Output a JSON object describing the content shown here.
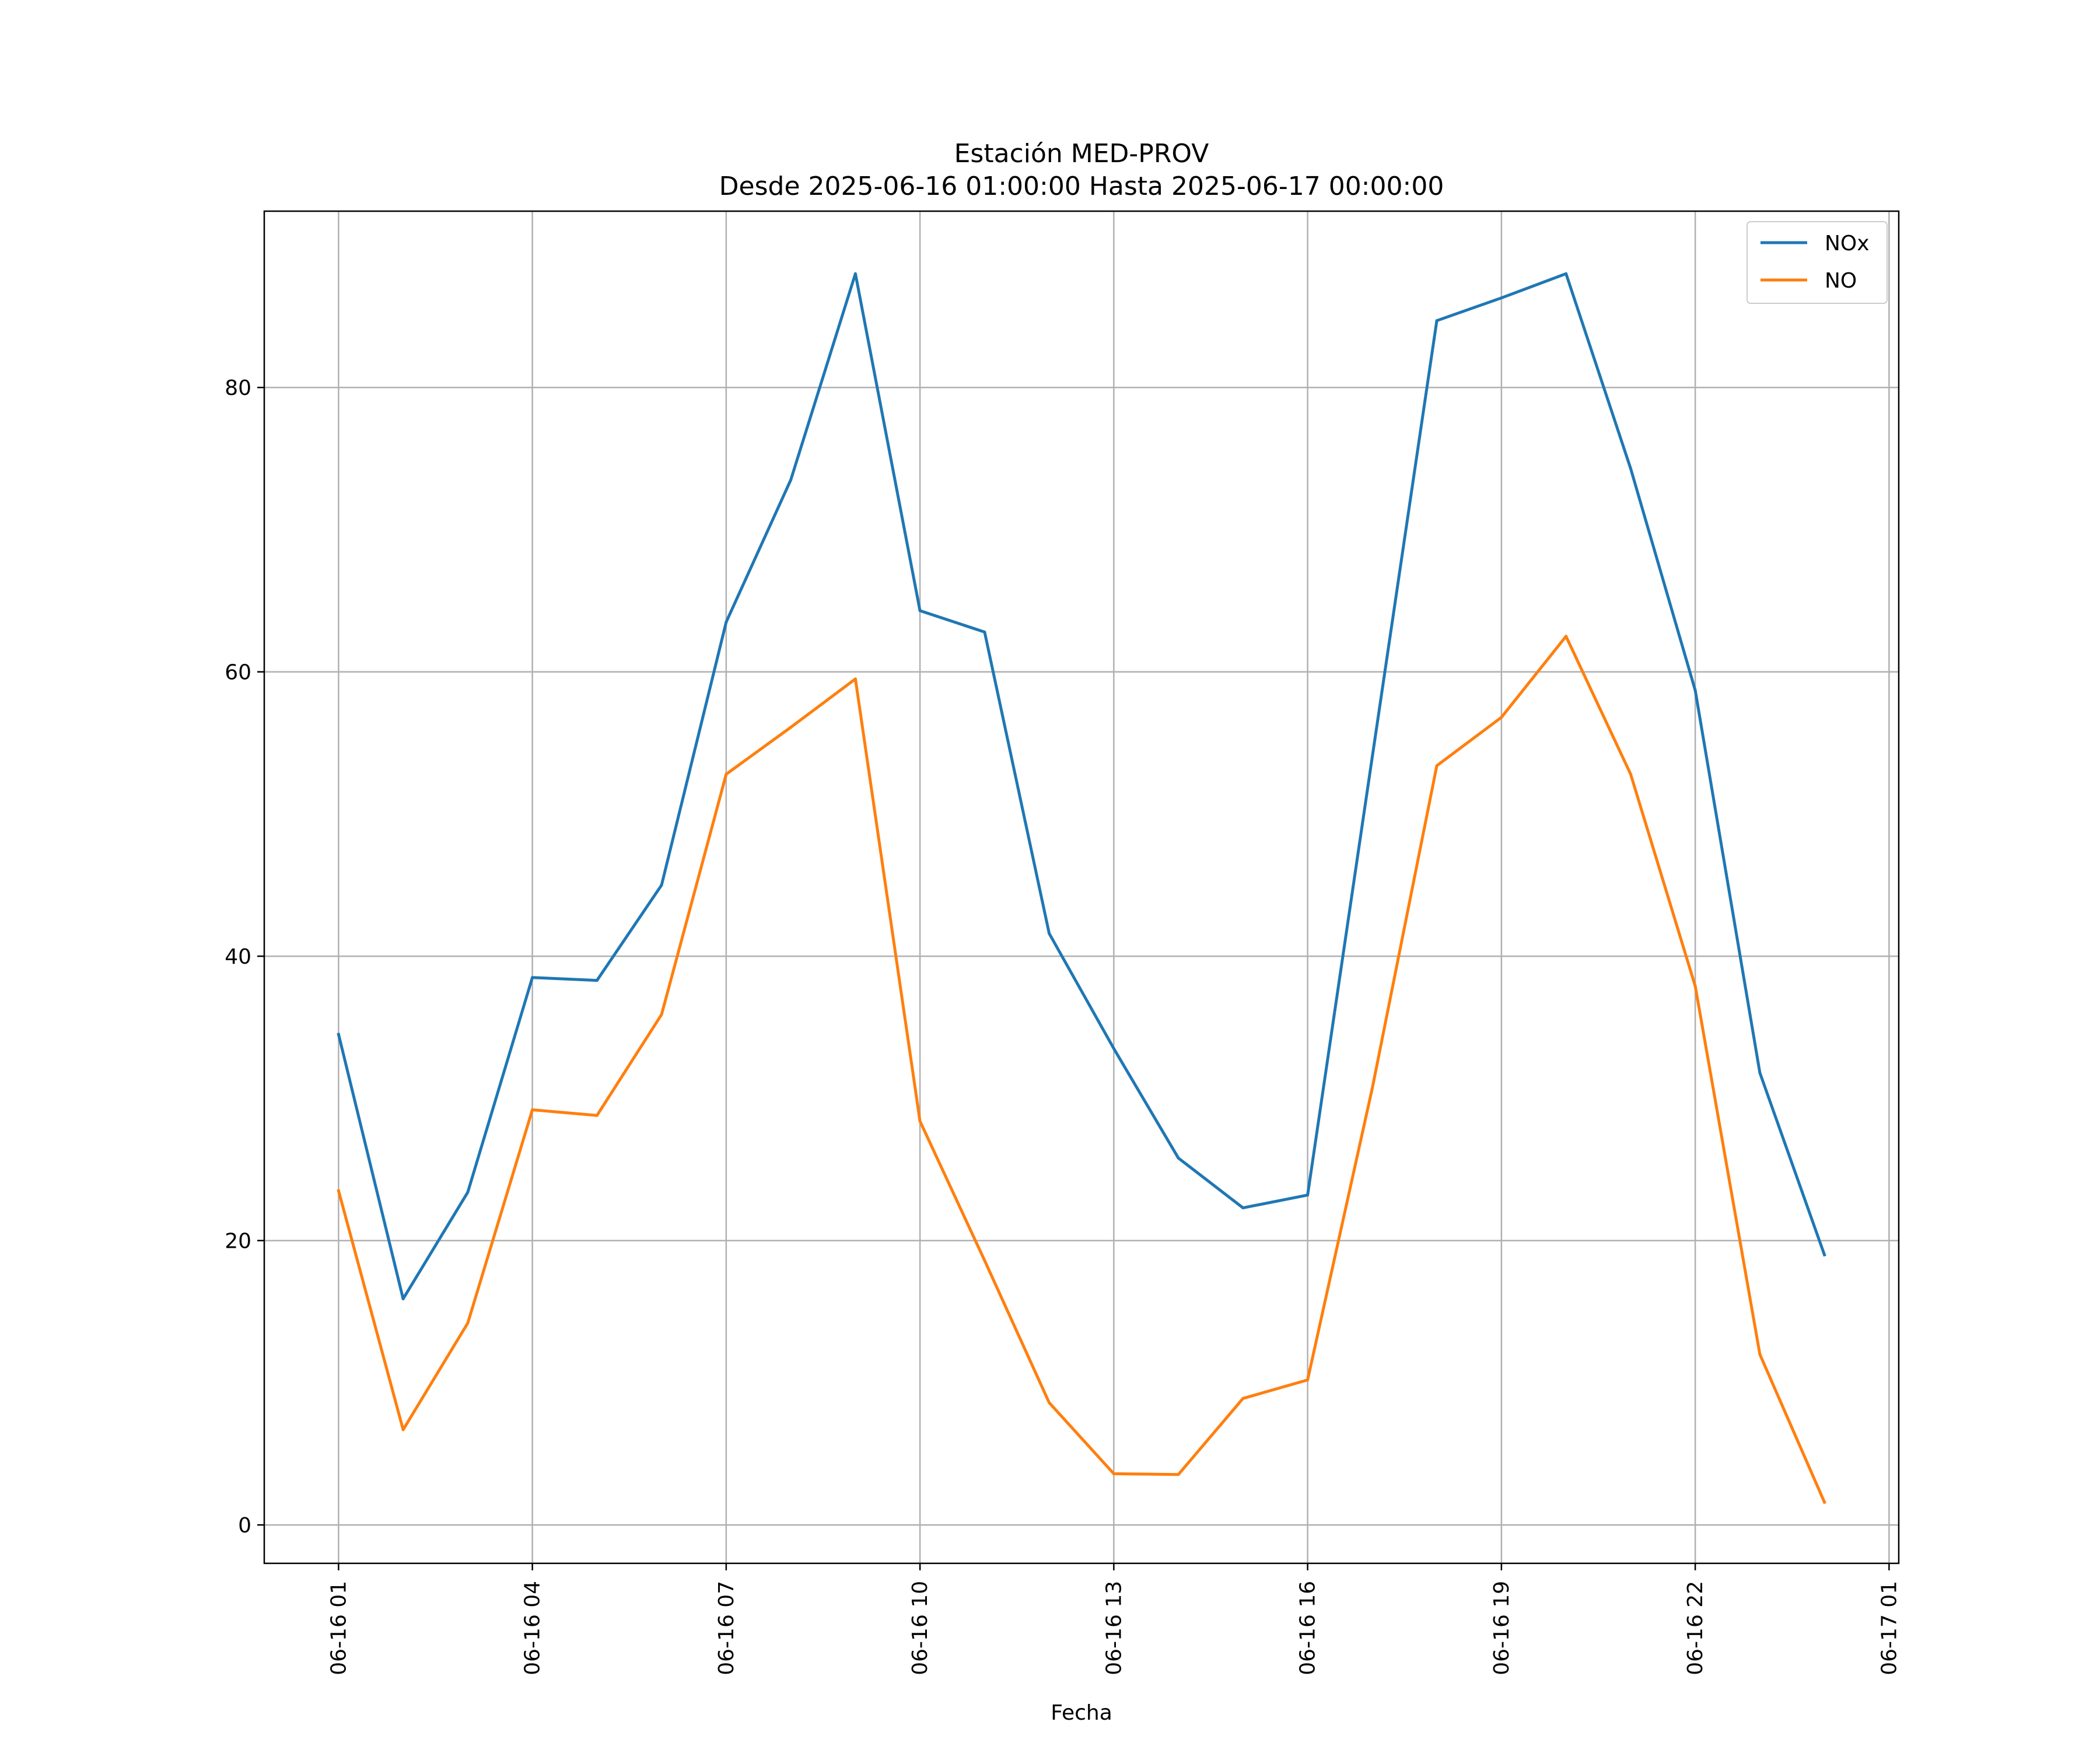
{
  "chart_data": {
    "type": "line",
    "title": "Estación MED-PROV",
    "subtitle": "Desde 2025-06-16 01:00:00 Hasta 2025-06-17 00:00:00",
    "xlabel": "Fecha",
    "ylabel": "",
    "x": [
      "2025-06-16 01:00",
      "2025-06-16 02:00",
      "2025-06-16 03:00",
      "2025-06-16 04:00",
      "2025-06-16 05:00",
      "2025-06-16 06:00",
      "2025-06-16 07:00",
      "2025-06-16 08:00",
      "2025-06-16 09:00",
      "2025-06-16 10:00",
      "2025-06-16 11:00",
      "2025-06-16 12:00",
      "2025-06-16 13:00",
      "2025-06-16 14:00",
      "2025-06-16 15:00",
      "2025-06-16 16:00",
      "2025-06-16 17:00",
      "2025-06-16 18:00",
      "2025-06-16 19:00",
      "2025-06-16 20:00",
      "2025-06-16 21:00",
      "2025-06-16 22:00",
      "2025-06-16 23:00",
      "2025-06-17 00:00"
    ],
    "series": [
      {
        "name": "NOx",
        "color": "#1f77b4",
        "values": [
          34.5,
          15.9,
          23.4,
          38.5,
          38.3,
          45.0,
          63.5,
          73.5,
          88.0,
          64.3,
          62.8,
          41.6,
          33.5,
          25.8,
          22.3,
          23.2,
          54.0,
          84.7,
          86.3,
          88.0,
          74.3,
          58.7,
          31.8,
          19.0
        ]
      },
      {
        "name": "NO",
        "color": "#ff7f0e",
        "values": [
          23.5,
          6.7,
          14.2,
          29.2,
          28.8,
          35.9,
          52.8,
          56.1,
          59.5,
          28.4,
          18.6,
          8.6,
          3.6,
          3.55,
          8.9,
          10.2,
          30.7,
          53.4,
          56.8,
          62.5,
          52.8,
          37.9,
          12.0,
          1.6
        ]
      }
    ],
    "x_tick_labels": [
      "06-16 01",
      "06-16 04",
      "06-16 07",
      "06-16 10",
      "06-16 13",
      "06-16 16",
      "06-16 19",
      "06-16 22",
      "06-17 01"
    ],
    "x_ticks": [
      "2025-06-16 01:00",
      "2025-06-16 04:00",
      "2025-06-16 07:00",
      "2025-06-16 10:00",
      "2025-06-16 13:00",
      "2025-06-16 16:00",
      "2025-06-16 19:00",
      "2025-06-16 22:00",
      "2025-06-17 01:00"
    ],
    "xlim": [
      "2025-06-15 23:51",
      "2025-06-17 01:09"
    ],
    "y_ticks": [
      0,
      20,
      40,
      60,
      80
    ],
    "ylim": [
      -2.7,
      92.4
    ],
    "grid": true,
    "legend_position": "top-right"
  }
}
